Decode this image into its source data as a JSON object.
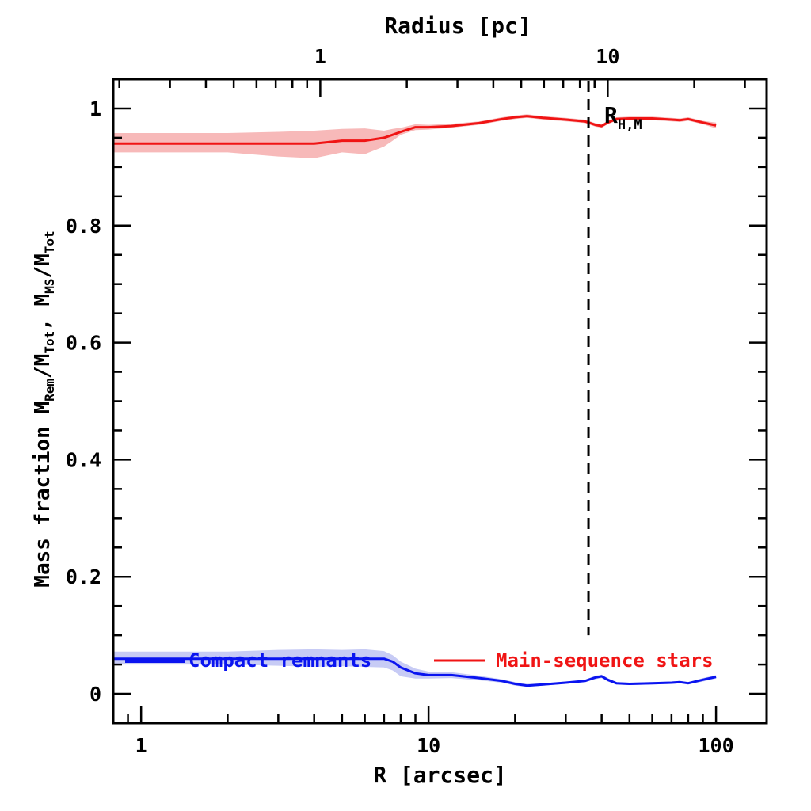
{
  "chart_data": {
    "type": "line",
    "xscale": "log",
    "xlim": [
      0.8,
      150
    ],
    "ylim": [
      -0.05,
      1.05
    ],
    "xlabel": "R [arcsec]",
    "ylabel": "Mass fraction  M_Rem/M_Tot,  M_MS/M_Tot",
    "ylabel_parts": {
      "prefix": "Mass fraction  M",
      "sub1": "Rem",
      "mid1": "/M",
      "sub2": "Tot",
      "mid2": ",  M",
      "sub3": "MS",
      "mid3": "/M",
      "sub4": "Tot"
    },
    "x_ticks": [
      {
        "value": 1,
        "label": "1"
      },
      {
        "value": 10,
        "label": "10"
      },
      {
        "value": 100,
        "label": "100"
      }
    ],
    "y_ticks": [
      {
        "value": 0,
        "label": "0"
      },
      {
        "value": 0.2,
        "label": "0.2"
      },
      {
        "value": 0.4,
        "label": "0.4"
      },
      {
        "value": 0.6,
        "label": "0.6"
      },
      {
        "value": 0.8,
        "label": "0.8"
      },
      {
        "value": 1,
        "label": "1"
      }
    ],
    "top_axis": {
      "label": "Radius [pc]",
      "ticks": [
        {
          "value": 1,
          "label": "1",
          "x_arcsec": 4.2
        },
        {
          "value": 10,
          "label": "10",
          "x_arcsec": 42
        }
      ]
    },
    "annotation": {
      "main": "R",
      "sub": "H,M",
      "x": 36,
      "y": 0.97
    },
    "vline": {
      "x": 36,
      "style": "dashed"
    },
    "series": [
      {
        "name": "Compact remnants",
        "color": "#0a14f0",
        "band_color": "#c7cbf5",
        "x": [
          0.8,
          1,
          2,
          3,
          4,
          5,
          6,
          7,
          7.5,
          8,
          9,
          10,
          12,
          15,
          18,
          20,
          22,
          25,
          30,
          35,
          38,
          40,
          42,
          45,
          50,
          60,
          70,
          75,
          80,
          90,
          100
        ],
        "y": [
          0.06,
          0.06,
          0.06,
          0.06,
          0.06,
          0.06,
          0.06,
          0.06,
          0.055,
          0.045,
          0.035,
          0.032,
          0.032,
          0.027,
          0.022,
          0.017,
          0.014,
          0.016,
          0.019,
          0.022,
          0.028,
          0.03,
          0.024,
          0.018,
          0.017,
          0.018,
          0.019,
          0.02,
          0.018,
          0.024,
          0.029
        ],
        "band_lo": [
          0.05,
          0.05,
          0.05,
          0.048,
          0.046,
          0.047,
          0.046,
          0.045,
          0.04,
          0.03,
          0.026,
          0.026,
          0.027,
          0.023,
          0.019,
          0.014,
          0.012,
          0.014,
          0.017,
          0.02,
          0.025,
          0.027,
          0.021,
          0.016,
          0.015,
          0.016,
          0.017,
          0.018,
          0.016,
          0.021,
          0.026
        ],
        "band_hi": [
          0.072,
          0.072,
          0.072,
          0.075,
          0.076,
          0.075,
          0.076,
          0.073,
          0.066,
          0.055,
          0.043,
          0.038,
          0.037,
          0.031,
          0.025,
          0.02,
          0.017,
          0.018,
          0.021,
          0.024,
          0.031,
          0.033,
          0.027,
          0.02,
          0.019,
          0.02,
          0.021,
          0.022,
          0.02,
          0.027,
          0.032
        ]
      },
      {
        "name": "Main-sequence stars",
        "color": "#f01414",
        "band_color": "#f7b9b9",
        "x": [
          0.8,
          1,
          2,
          3,
          4,
          5,
          6,
          7,
          7.5,
          8,
          9,
          10,
          12,
          15,
          18,
          20,
          22,
          25,
          30,
          35,
          38,
          40,
          42,
          45,
          50,
          60,
          70,
          75,
          80,
          90,
          100
        ],
        "y": [
          0.94,
          0.94,
          0.94,
          0.94,
          0.94,
          0.945,
          0.945,
          0.95,
          0.955,
          0.96,
          0.968,
          0.968,
          0.97,
          0.975,
          0.982,
          0.985,
          0.987,
          0.984,
          0.981,
          0.978,
          0.972,
          0.97,
          0.976,
          0.982,
          0.983,
          0.983,
          0.981,
          0.98,
          0.982,
          0.976,
          0.971
        ],
        "band_lo": [
          0.925,
          0.925,
          0.925,
          0.918,
          0.915,
          0.925,
          0.922,
          0.935,
          0.945,
          0.955,
          0.963,
          0.964,
          0.967,
          0.972,
          0.979,
          0.982,
          0.984,
          0.981,
          0.978,
          0.975,
          0.969,
          0.967,
          0.973,
          0.979,
          0.98,
          0.98,
          0.978,
          0.977,
          0.979,
          0.973,
          0.966
        ],
        "band_hi": [
          0.958,
          0.958,
          0.958,
          0.96,
          0.962,
          0.965,
          0.966,
          0.962,
          0.965,
          0.967,
          0.973,
          0.972,
          0.974,
          0.978,
          0.985,
          0.988,
          0.99,
          0.987,
          0.984,
          0.981,
          0.975,
          0.973,
          0.979,
          0.985,
          0.986,
          0.986,
          0.984,
          0.983,
          0.985,
          0.979,
          0.976
        ]
      }
    ]
  }
}
